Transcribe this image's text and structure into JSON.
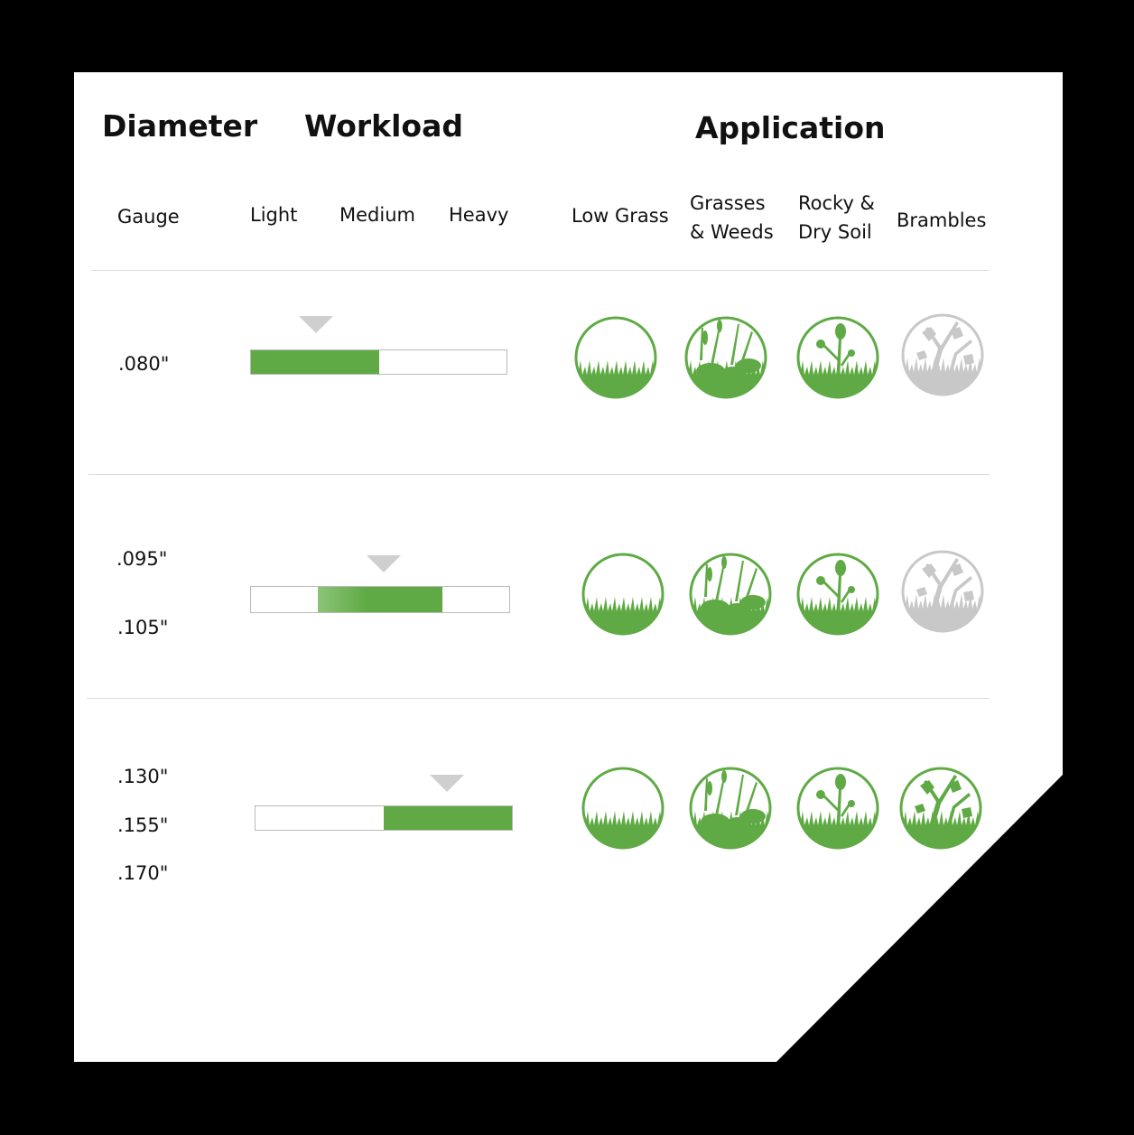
{
  "headers": {
    "diameter": "Diameter",
    "workload": "Workload",
    "application": "Application"
  },
  "subheaders": {
    "gauge": "Gauge",
    "light": "Light",
    "medium": "Medium",
    "heavy": "Heavy",
    "applications": [
      "Low Grass",
      "Grasses\n& Weeds",
      "Rocky &\nDry Soil",
      "Brambles"
    ]
  },
  "colors": {
    "active": "#5faa45",
    "inactive": "#c8c8c8",
    "marker": "#cfcfcf"
  },
  "rows": [
    {
      "gauges": [
        ".080\""
      ],
      "workload": {
        "fill_start": 0,
        "fill_end": 0.5,
        "marker": "light-medium"
      },
      "applications": [
        {
          "icon": "low-grass-icon",
          "active": true
        },
        {
          "icon": "grasses-weeds-icon",
          "active": true
        },
        {
          "icon": "rocky-dry-soil-icon",
          "active": true
        },
        {
          "icon": "brambles-icon",
          "active": false
        }
      ]
    },
    {
      "gauges": [
        ".095\"",
        ".105\""
      ],
      "workload": {
        "fill_start": 0.26,
        "fill_end": 0.74,
        "marker": "medium"
      },
      "applications": [
        {
          "icon": "low-grass-icon",
          "active": true
        },
        {
          "icon": "grasses-weeds-icon",
          "active": true
        },
        {
          "icon": "rocky-dry-soil-icon",
          "active": true
        },
        {
          "icon": "brambles-icon",
          "active": false
        }
      ]
    },
    {
      "gauges": [
        ".130\"",
        ".155\"",
        ".170\""
      ],
      "workload": {
        "fill_start": 0.5,
        "fill_end": 1,
        "marker": "medium-heavy"
      },
      "applications": [
        {
          "icon": "low-grass-icon",
          "active": true
        },
        {
          "icon": "grasses-weeds-icon",
          "active": true
        },
        {
          "icon": "rocky-dry-soil-icon",
          "active": true
        },
        {
          "icon": "brambles-icon",
          "active": true
        }
      ]
    }
  ]
}
